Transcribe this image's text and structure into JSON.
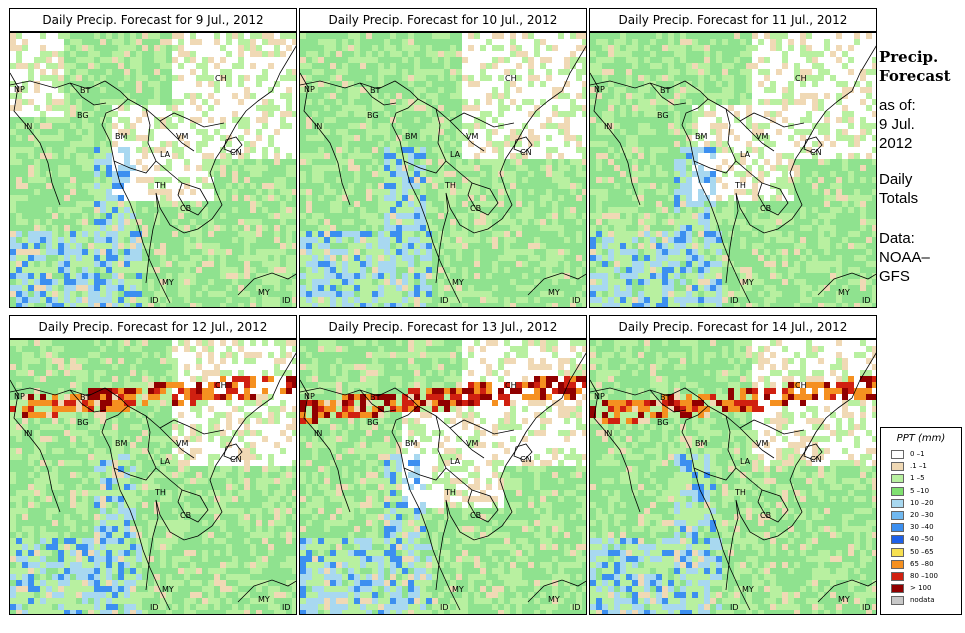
{
  "panels": [
    {
      "title": "Daily Precip. Forecast for  9 Jul., 2012"
    },
    {
      "title": "Daily Precip. Forecast for  10 Jul., 2012"
    },
    {
      "title": "Daily Precip. Forecast for  11 Jul., 2012"
    },
    {
      "title": "Daily Precip. Forecast for  12 Jul., 2012"
    },
    {
      "title": "Daily Precip. Forecast for  13 Jul., 2012"
    },
    {
      "title": "Daily Precip. Forecast for  14 Jul., 2012"
    }
  ],
  "map_labels": {
    "ch": "CH",
    "np": "NP",
    "bt": "BT",
    "in": "IN",
    "bg": "BG",
    "bm": "BM",
    "vm": "VM",
    "la": "LA",
    "th": "TH",
    "cb": "CB",
    "cn": "CN",
    "my": "MY",
    "my2": "MY",
    "id": "ID",
    "id2": "ID"
  },
  "side": {
    "title_line1": "Precip.",
    "title_line2": "Forecast",
    "asof_line1": "as of:",
    "asof_line2": "9 Jul.",
    "asof_line3": "2012",
    "totals_line1": "Daily",
    "totals_line2": "Totals",
    "data_line1": "Data:",
    "data_line2": "NOAA–",
    "data_line3": "GFS"
  },
  "legend": {
    "title": "PPT (mm)",
    "items": [
      {
        "label": "0 –1",
        "color": "#ffffff"
      },
      {
        "label": ".1 –1",
        "color": "#f0d9b5"
      },
      {
        "label": "1 –5",
        "color": "#b8f0a0"
      },
      {
        "label": "5 –10",
        "color": "#80e070"
      },
      {
        "label": "10 –20",
        "color": "#a8d8f0"
      },
      {
        "label": "20 –30",
        "color": "#70b8f0"
      },
      {
        "label": "30 –40",
        "color": "#3c8ff0"
      },
      {
        "label": "40 –50",
        "color": "#1e60e8"
      },
      {
        "label": "50 –65",
        "color": "#f7e050"
      },
      {
        "label": "65 –80",
        "color": "#f59020"
      },
      {
        "label": "80 –100",
        "color": "#d02010"
      },
      {
        "label": "> 100",
        "color": "#900000"
      },
      {
        "label": "nodata",
        "color": "#c8c8c8"
      }
    ]
  }
}
